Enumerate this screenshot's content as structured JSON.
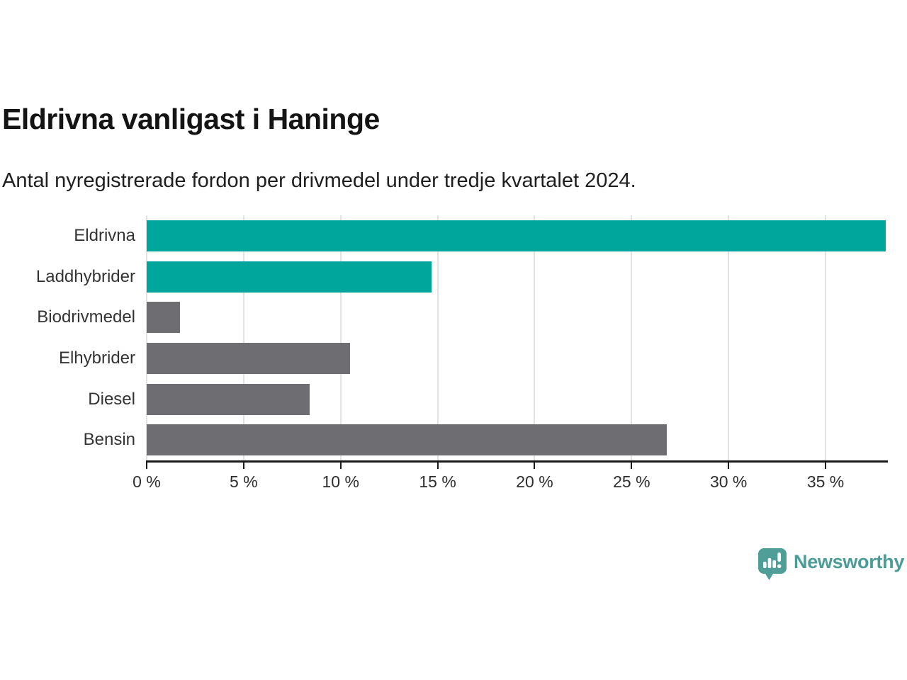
{
  "title": "Eldrivna vanligast i Haninge",
  "subtitle": "Antal nyregistrerade fordon per drivmedel under tredje kvartalet 2024.",
  "chart_data": {
    "type": "bar",
    "orientation": "horizontal",
    "title": "Eldrivna vanligast i Haninge",
    "subtitle": "Antal nyregistrerade fordon per drivmedel under tredje kvartalet 2024.",
    "categories": [
      "Eldrivna",
      "Laddhybrider",
      "Biodrivmedel",
      "Elhybrider",
      "Diesel",
      "Bensin"
    ],
    "values": [
      38.1,
      14.7,
      1.7,
      10.5,
      8.4,
      26.8
    ],
    "unit": "%",
    "xlim": [
      0,
      38.14
    ],
    "xticks": [
      0,
      5,
      10,
      15,
      20,
      25,
      30,
      35
    ],
    "xtick_labels": [
      "0 %",
      "5 %",
      "10 %",
      "15 %",
      "20 %",
      "25 %",
      "30 %",
      "35 %"
    ],
    "colors": [
      "#00a59b",
      "#00a59b",
      "#6d6d72",
      "#6d6d72",
      "#6d6d72",
      "#6d6d72"
    ],
    "highlight_color": "#00a59b",
    "default_color": "#6d6d72",
    "grid": true,
    "gridline_color": "#e2e2e2",
    "axis_color": "#1a1a1a",
    "legend": "none"
  },
  "branding": {
    "logo_text": "Newsworthy",
    "logo_color": "#4a9d97",
    "logo_icon": "speech-bubble-bar-chart-icon"
  }
}
